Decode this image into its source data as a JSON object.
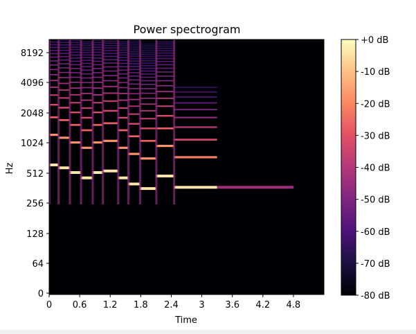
{
  "chart_data": {
    "type": "heatmap",
    "title": "Power spectrogram",
    "xlabel": "Time",
    "ylabel": "Hz",
    "x_ticks": [
      "0",
      "0.6",
      "1.2",
      "1.8",
      "2.4",
      "3",
      "3.6",
      "4.2",
      "4.8"
    ],
    "x_tick_values": [
      0,
      0.6,
      1.2,
      1.8,
      2.4,
      3.0,
      3.6,
      4.2,
      4.8
    ],
    "xlim": [
      0,
      5.4
    ],
    "y_scale": "log2",
    "y_ticks": [
      "0",
      "64",
      "128",
      "256",
      "512",
      "1024",
      "2048",
      "4096",
      "8192"
    ],
    "y_tick_values": [
      0,
      64,
      128,
      256,
      512,
      1024,
      2048,
      4096,
      8192
    ],
    "ylim": [
      0,
      11025
    ],
    "colormap": "magma",
    "colorbar": {
      "ticks": [
        "+0 dB",
        "-10 dB",
        "-20 dB",
        "-30 dB",
        "-40 dB",
        "-50 dB",
        "-60 dB",
        "-70 dB",
        "-80 dB"
      ],
      "tick_values": [
        0,
        -10,
        -20,
        -30,
        -40,
        -50,
        -60,
        -70,
        -80
      ],
      "range": [
        -80,
        0
      ]
    },
    "notes_fundamental_hz": [
      {
        "t_start": 0.0,
        "t_end": 0.18,
        "f0": 620
      },
      {
        "t_start": 0.18,
        "t_end": 0.4,
        "f0": 580
      },
      {
        "t_start": 0.4,
        "t_end": 0.62,
        "f0": 520
      },
      {
        "t_start": 0.62,
        "t_end": 0.85,
        "f0": 460
      },
      {
        "t_start": 0.85,
        "t_end": 1.05,
        "f0": 520
      },
      {
        "t_start": 1.05,
        "t_end": 1.35,
        "f0": 540
      },
      {
        "t_start": 1.35,
        "t_end": 1.55,
        "f0": 460
      },
      {
        "t_start": 1.55,
        "t_end": 1.78,
        "f0": 400
      },
      {
        "t_start": 1.78,
        "t_end": 2.1,
        "f0": 360
      },
      {
        "t_start": 2.1,
        "t_end": 2.45,
        "f0": 480
      },
      {
        "t_start": 2.45,
        "t_end": 3.3,
        "f0": 370
      }
    ]
  }
}
